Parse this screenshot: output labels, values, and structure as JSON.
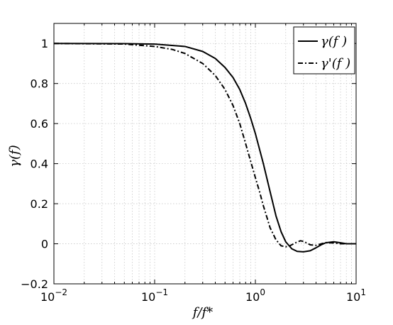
{
  "chart_data": {
    "type": "line",
    "xscale": "log",
    "xlim": [
      0.01,
      10
    ],
    "ylim": [
      -0.2,
      1.1
    ],
    "grid": true,
    "legend_position": "top-right",
    "xlabel": "f/f*",
    "ylabel": "γ(f)",
    "x_ticks": [
      0.01,
      0.1,
      1,
      10
    ],
    "y_ticks": [
      -0.2,
      0,
      0.2,
      0.4,
      0.6,
      0.8,
      1
    ],
    "y_tick_labels": [
      "−0.2",
      "0",
      "0.2",
      "0.4",
      "0.6",
      "0.8",
      "1"
    ],
    "x_tick_labels": [
      {
        "base": "10",
        "exp": "−2"
      },
      {
        "base": "10",
        "exp": "−1"
      },
      {
        "base": "10",
        "exp": "0"
      },
      {
        "base": "10",
        "exp": "1"
      }
    ],
    "series": [
      {
        "name": "γ(f )",
        "style": "solid",
        "color": "#000000",
        "x": [
          0.01,
          0.05,
          0.1,
          0.2,
          0.3,
          0.4,
          0.5,
          0.6,
          0.7,
          0.8,
          0.9,
          1.0,
          1.2,
          1.4,
          1.6,
          1.8,
          2.0,
          2.3,
          2.6,
          3.0,
          3.5,
          4.0,
          4.5,
          5.0,
          6.0,
          7.0,
          8.0,
          10.0
        ],
        "y": [
          1.0,
          0.999,
          0.997,
          0.985,
          0.96,
          0.925,
          0.88,
          0.83,
          0.77,
          0.7,
          0.625,
          0.55,
          0.4,
          0.26,
          0.14,
          0.06,
          0.01,
          -0.025,
          -0.038,
          -0.04,
          -0.035,
          -0.02,
          -0.005,
          0.005,
          0.01,
          0.005,
          0.0,
          0.0
        ]
      },
      {
        "name": "γ'(f )",
        "style": "dashdot",
        "color": "#000000",
        "x": [
          0.01,
          0.05,
          0.1,
          0.15,
          0.2,
          0.3,
          0.4,
          0.5,
          0.6,
          0.7,
          0.8,
          0.9,
          1.0,
          1.1,
          1.2,
          1.4,
          1.6,
          1.8,
          2.0,
          2.2,
          2.5,
          2.8,
          3.0,
          3.5,
          4.0,
          4.5,
          5.0,
          6.0,
          7.0,
          8.0,
          10.0
        ],
        "y": [
          1.0,
          0.997,
          0.985,
          0.97,
          0.95,
          0.9,
          0.84,
          0.77,
          0.69,
          0.6,
          0.5,
          0.41,
          0.33,
          0.26,
          0.19,
          0.08,
          0.02,
          -0.01,
          -0.015,
          -0.01,
          0.005,
          0.015,
          0.012,
          -0.005,
          -0.008,
          0.0,
          0.006,
          0.004,
          0.0,
          0.0,
          0.0
        ]
      }
    ]
  }
}
